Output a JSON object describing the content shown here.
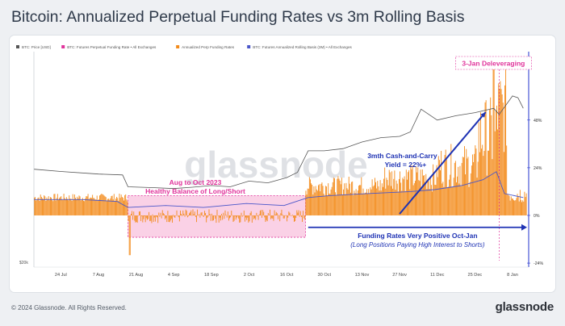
{
  "title": "Bitcoin: Annualized Perpetual Funding Rates vs 3m Rolling Basis",
  "footer": {
    "copyright": "© 2024 Glassnode. All Rights Reserved.",
    "brand": "glassnode"
  },
  "watermark": "glassnode",
  "colors": {
    "price": "#555555",
    "funding_legend": "#e0339b",
    "funding": "#f38b1b",
    "basis": "#4a56c9",
    "pink_band": "#f9c9e2",
    "pink_text": "#e0339b",
    "blue_text": "#1f33b4"
  },
  "annotations": {
    "deleveraging": "3-Jan Deleveraging",
    "balance_1": "Aug to Oct 2023",
    "balance_2": "Healthy Balance of Long/Short",
    "cash_carry_1": "3mth Cash-and-Carry",
    "cash_carry_2": "Yield = 22%+",
    "funding_pos_1": "Funding Rates Very Positive Oct-Jan",
    "funding_pos_2": "(Long Positions Paying High Interest to Shorts)"
  },
  "chart_data": {
    "type": "line",
    "legend": [
      {
        "name": "BTC: Price [USD]",
        "color": "#555555"
      },
      {
        "name": "BTC: Futures Perpetual Funding Rate • All Exchanges",
        "color": "#e0339b"
      },
      {
        "name": "Annualized Perp Funding Rates",
        "color": "#f38b1b"
      },
      {
        "name": "BTC: Futures Annualized Rolling Basis (3M) • All Exchanges",
        "color": "#4a56c9"
      }
    ],
    "legend_position": "top-left",
    "x_ticks": [
      "24 Jul",
      "7 Aug",
      "21 Aug",
      "4 Sep",
      "18 Sep",
      "2 Oct",
      "16 Oct",
      "30 Oct",
      "13 Nov",
      "27 Nov",
      "11 Dec",
      "25 Dec",
      "8 Jan"
    ],
    "x_range": [
      "2023-07-14",
      "2024-01-14"
    ],
    "y_left_label": "$20k",
    "y_right_ticks": [
      "48%",
      "24%",
      "0%",
      "-24%"
    ],
    "y_right_values": [
      48,
      24,
      0,
      -24
    ],
    "y_right_range": [
      -26,
      80
    ],
    "series": [
      {
        "name": "BTC: Price [USD]",
        "dates": [
          "2023-07-14",
          "2023-07-24",
          "2023-08-07",
          "2023-08-16",
          "2023-08-18",
          "2023-08-28",
          "2023-09-04",
          "2023-09-11",
          "2023-09-18",
          "2023-09-25",
          "2023-10-02",
          "2023-10-09",
          "2023-10-16",
          "2023-10-20",
          "2023-10-24",
          "2023-10-30",
          "2023-11-06",
          "2023-11-13",
          "2023-11-20",
          "2023-11-27",
          "2023-12-01",
          "2023-12-05",
          "2023-12-11",
          "2023-12-18",
          "2023-12-25",
          "2024-01-01",
          "2024-01-03",
          "2024-01-08",
          "2024-01-10",
          "2024-01-12"
        ],
        "values": [
          30300,
          29800,
          29200,
          29000,
          26300,
          26100,
          25900,
          26200,
          26600,
          26300,
          27600,
          27200,
          28400,
          29600,
          34500,
          34500,
          35000,
          36500,
          37500,
          37800,
          38800,
          44000,
          41500,
          42500,
          43200,
          44200,
          42800,
          47000,
          46600,
          44200
        ]
      },
      {
        "name": "BTC: Futures Annualized Rolling Basis (3M) • All Exchanges",
        "dates": [
          "2023-07-14",
          "2023-08-01",
          "2023-08-14",
          "2023-08-18",
          "2023-09-01",
          "2023-09-15",
          "2023-10-01",
          "2023-10-15",
          "2023-10-24",
          "2023-11-01",
          "2023-11-15",
          "2023-12-01",
          "2023-12-10",
          "2023-12-20",
          "2023-12-28",
          "2024-01-02",
          "2024-01-05",
          "2024-01-12"
        ],
        "values": [
          8,
          8,
          7,
          4,
          5,
          4,
          6,
          5,
          9,
          10,
          11,
          12,
          13,
          15,
          18,
          22,
          11,
          9
        ]
      }
    ],
    "note": "Annualized Perp Funding Rates series shown as orange bars (daily noisy values, in %)"
  }
}
